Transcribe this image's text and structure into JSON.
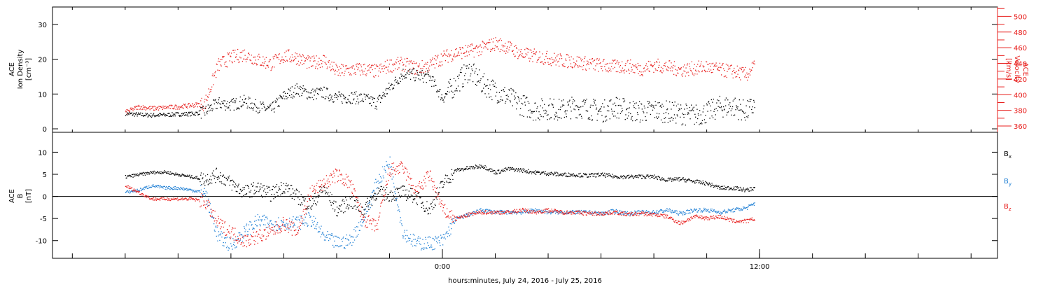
{
  "chart_data": [
    {
      "type": "scatter",
      "panel": "density-velocity",
      "ylabel_lines": [
        "ACE",
        "Ion Density",
        "[cm⁻³]"
      ],
      "yticks": [
        0,
        10,
        20,
        30
      ],
      "ylim": [
        -1,
        35
      ],
      "y2label_lines": [
        "ACE",
        "Velocity",
        "[km/s]"
      ],
      "y2ticks": [
        360,
        380,
        400,
        420,
        440,
        460,
        480,
        500
      ],
      "y2lim": [
        352,
        512
      ],
      "x_hours": [
        -12.0,
        -11.5,
        -11.0,
        -10.5,
        -10.0,
        -9.5,
        -9.0,
        -8.5,
        -8.0,
        -7.5,
        -7.0,
        -6.5,
        -6.0,
        -5.5,
        -5.0,
        -4.5,
        -4.0,
        -3.5,
        -3.0,
        -2.5,
        -2.0,
        -1.5,
        -1.0,
        -0.5,
        0.0,
        0.5,
        1.0,
        1.5,
        2.0,
        2.5,
        3.0,
        3.5,
        4.0,
        4.5,
        5.0,
        5.5,
        6.0,
        6.5,
        7.0,
        7.5,
        8.0,
        8.5,
        9.0,
        9.5,
        10.0,
        10.5,
        11.0,
        11.5,
        11.8
      ],
      "series": [
        {
          "color": "#000000",
          "axis": "left",
          "values": [
            4.5,
            4.2,
            4.0,
            4.1,
            4.3,
            4.4,
            5.0,
            7.5,
            7.0,
            8.0,
            6.5,
            5.5,
            9.5,
            11.5,
            10.0,
            10.5,
            9.0,
            9.2,
            8.8,
            7.5,
            12.0,
            16.0,
            15.5,
            15.0,
            9.0,
            13.0,
            17.0,
            13.0,
            11.0,
            9.0,
            7.0,
            5.5,
            6.0,
            5.5,
            6.5,
            6.0,
            5.0,
            6.5,
            5.5,
            5.0,
            5.5,
            5.0,
            4.5,
            4.0,
            4.8,
            6.5,
            6.5,
            5.0,
            7.0
          ]
        },
        {
          "color": "#e8201e",
          "axis": "right",
          "values": [
            378,
            385,
            383,
            384,
            385,
            387,
            389,
            438,
            448,
            452,
            445,
            440,
            450,
            448,
            440,
            445,
            430,
            432,
            433,
            430,
            438,
            440,
            434,
            438,
            448,
            454,
            456,
            460,
            466,
            461,
            452,
            450,
            447,
            444,
            443,
            440,
            438,
            436,
            437,
            433,
            438,
            436,
            432,
            434,
            436,
            432,
            430,
            426,
            438
          ]
        }
      ]
    },
    {
      "type": "scatter",
      "panel": "magnetic-field",
      "ylabel_lines": [
        "ACE",
        "B",
        "[nT]"
      ],
      "yticks": [
        -10,
        -5,
        0,
        5,
        10
      ],
      "ylim": [
        -14,
        14.5
      ],
      "zero_line": true,
      "x_hours": [
        -12.0,
        -11.5,
        -11.0,
        -10.5,
        -10.0,
        -9.5,
        -9.0,
        -8.5,
        -8.0,
        -7.5,
        -7.0,
        -6.5,
        -6.0,
        -5.5,
        -5.0,
        -4.5,
        -4.0,
        -3.5,
        -3.0,
        -2.5,
        -2.0,
        -1.5,
        -1.0,
        -0.5,
        0.0,
        0.5,
        1.0,
        1.5,
        2.0,
        2.5,
        3.0,
        3.5,
        4.0,
        4.5,
        5.0,
        5.5,
        6.0,
        6.5,
        7.0,
        7.5,
        8.0,
        8.5,
        9.0,
        9.5,
        10.0,
        10.5,
        11.0,
        11.5,
        11.8
      ],
      "series": [
        {
          "name": "Bx",
          "color": "#000000",
          "values": [
            4.5,
            5.0,
            5.5,
            5.6,
            5.0,
            4.5,
            4.0,
            5.0,
            3.0,
            1.0,
            2.0,
            0.5,
            2.5,
            0.0,
            -2.0,
            2.0,
            -3.0,
            -1.0,
            -3.0,
            1.0,
            0.5,
            1.0,
            0.0,
            -3.0,
            3.0,
            6.0,
            6.5,
            7.0,
            5.5,
            6.3,
            6.0,
            5.5,
            5.3,
            5.0,
            5.0,
            4.8,
            5.0,
            4.6,
            4.5,
            4.6,
            4.5,
            3.8,
            4.0,
            3.5,
            3.0,
            2.0,
            2.0,
            1.5,
            2.0
          ]
        },
        {
          "name": "By",
          "color": "#1f7fd4",
          "values": [
            1.0,
            1.5,
            2.5,
            2.0,
            2.0,
            1.5,
            1.0,
            -9.0,
            -11.0,
            -8.0,
            -5.5,
            -6.0,
            -6.0,
            -6.0,
            -5.0,
            -9.0,
            -10.5,
            -10.0,
            -5.0,
            3.0,
            8.0,
            -8.0,
            -10.5,
            -10.5,
            -10.0,
            -5.0,
            -4.0,
            -3.0,
            -3.5,
            -3.5,
            -3.5,
            -3.0,
            -3.5,
            -3.5,
            -3.5,
            -3.5,
            -3.8,
            -3.2,
            -3.8,
            -3.5,
            -3.5,
            -3.0,
            -3.8,
            -3.0,
            -3.0,
            -3.5,
            -3.0,
            -2.5,
            -1.5
          ]
        },
        {
          "name": "Bz",
          "color": "#e8201e",
          "values": [
            2.5,
            1.0,
            -0.5,
            -0.5,
            -0.5,
            -0.5,
            -1.0,
            -6.0,
            -8.0,
            -10.0,
            -9.0,
            -8.0,
            -6.0,
            -8.0,
            1.0,
            3.0,
            5.0,
            3.0,
            -5.0,
            -7.0,
            6.0,
            6.5,
            1.0,
            5.0,
            -3.0,
            -5.0,
            -4.0,
            -3.5,
            -3.5,
            -3.5,
            -3.0,
            -3.5,
            -3.0,
            -3.5,
            -3.5,
            -3.8,
            -3.8,
            -3.5,
            -4.0,
            -3.8,
            -4.0,
            -4.5,
            -6.0,
            -4.5,
            -4.8,
            -4.5,
            -5.5,
            -5.5,
            -5.0
          ]
        }
      ],
      "legend": [
        {
          "label": "B",
          "sub": "x",
          "color": "#000000"
        },
        {
          "label": "B",
          "sub": "y",
          "color": "#1f7fd4"
        },
        {
          "label": "B",
          "sub": "z",
          "color": "#e8201e"
        }
      ]
    }
  ],
  "x_axis": {
    "label": "hours:minutes, July 24, 2016 - July 25, 2016",
    "range_hours": [
      -14.75,
      21.0
    ],
    "major_ticks": [
      {
        "hours": 0,
        "label": "0:00"
      },
      {
        "hours": 12,
        "label": "12:00"
      }
    ],
    "minor_step_hours": 2
  }
}
